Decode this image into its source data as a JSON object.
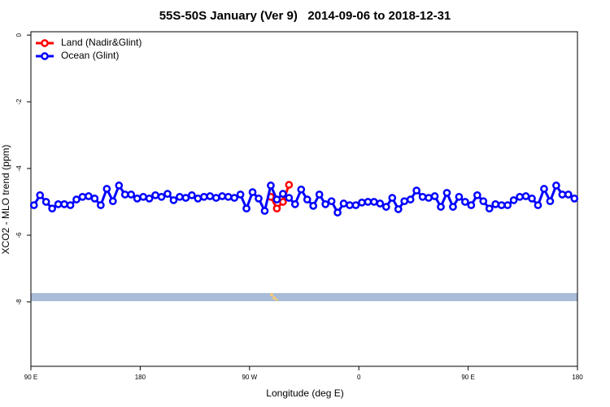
{
  "chart_data": {
    "type": "line",
    "title": "55S-50S January (Ver 9)   2014-09-06 to 2018-12-31",
    "x_label": "Longitude (deg E)",
    "y_label": "XCO2 - MLO trend (ppm)",
    "xlim": [
      90,
      540
    ],
    "ylim": [
      -9.93,
      0.1
    ],
    "xticks": [
      {
        "value": 90,
        "label": "90 E"
      },
      {
        "value": 180,
        "label": "180"
      },
      {
        "value": 270,
        "label": "90 W"
      },
      {
        "value": 360,
        "label": "0"
      },
      {
        "value": 450,
        "label": "90 E"
      },
      {
        "value": 540,
        "label": "180"
      }
    ],
    "yticks": [
      0,
      -2,
      -4,
      -6,
      -8
    ],
    "legend": "top-left",
    "series": [
      {
        "name": "Land (Nadir&Glint)",
        "color": "#ff0000",
        "x": [
          287.5,
          292.5,
          297.5,
          302.5
        ],
        "values": [
          -4.85,
          -5.2,
          -5.0,
          -4.49
        ]
      },
      {
        "name": "Ocean (Glint)",
        "color": "#0000ff",
        "x": [
          92.5,
          97.5,
          102.5,
          107.5,
          112.5,
          117.5,
          122.5,
          127.5,
          132.5,
          137.5,
          142.5,
          147.5,
          152.5,
          157.5,
          162.5,
          167.5,
          172.5,
          177.5,
          182.5,
          187.5,
          192.5,
          197.5,
          202.5,
          207.5,
          212.5,
          217.5,
          222.5,
          227.5,
          232.5,
          237.5,
          242.5,
          247.5,
          252.5,
          257.5,
          262.5,
          267.5,
          272.5,
          277.5,
          282.5,
          287.5,
          292.5,
          297.5,
          302.5,
          307.5,
          312.5,
          317.5,
          322.5,
          327.5,
          332.5,
          337.5,
          342.5,
          347.5,
          352.5,
          357.5,
          362.5,
          367.5,
          372.5,
          377.5,
          382.5,
          387.5,
          392.5,
          397.5,
          402.5,
          407.5,
          412.5,
          417.5,
          422.5,
          427.5,
          432.5,
          437.5,
          442.5,
          447.5,
          452.5,
          457.5,
          462.5,
          467.5,
          472.5,
          477.5,
          482.5,
          487.5,
          492.5,
          497.5,
          502.5,
          507.5,
          512.5,
          517.5,
          522.5,
          527.5,
          532.5,
          537.5
        ],
        "values": [
          -5.1,
          -4.8,
          -5.0,
          -5.2,
          -5.07,
          -5.07,
          -5.1,
          -4.93,
          -4.85,
          -4.83,
          -4.9,
          -5.1,
          -4.61,
          -4.98,
          -4.51,
          -4.78,
          -4.78,
          -4.9,
          -4.85,
          -4.9,
          -4.8,
          -4.85,
          -4.76,
          -4.95,
          -4.85,
          -4.88,
          -4.8,
          -4.9,
          -4.85,
          -4.83,
          -4.88,
          -4.83,
          -4.85,
          -4.88,
          -4.78,
          -5.2,
          -4.71,
          -4.9,
          -5.27,
          -4.51,
          -4.93,
          -4.76,
          -4.88,
          -5.07,
          -4.63,
          -4.93,
          -5.12,
          -4.78,
          -5.07,
          -4.98,
          -5.32,
          -5.05,
          -5.1,
          -5.1,
          -5.02,
          -5.0,
          -5.0,
          -5.05,
          -5.15,
          -4.88,
          -5.22,
          -4.98,
          -4.93,
          -4.66,
          -4.85,
          -4.88,
          -4.83,
          -5.15,
          -4.73,
          -5.15,
          -4.85,
          -5.0,
          -5.1,
          -4.8,
          -4.98,
          -5.2,
          -5.07,
          -5.1,
          -5.1,
          -4.95,
          -4.85,
          -4.83,
          -4.9,
          -5.1,
          -4.61,
          -4.98,
          -4.51,
          -4.78,
          -4.78,
          -4.9
        ]
      }
    ]
  }
}
